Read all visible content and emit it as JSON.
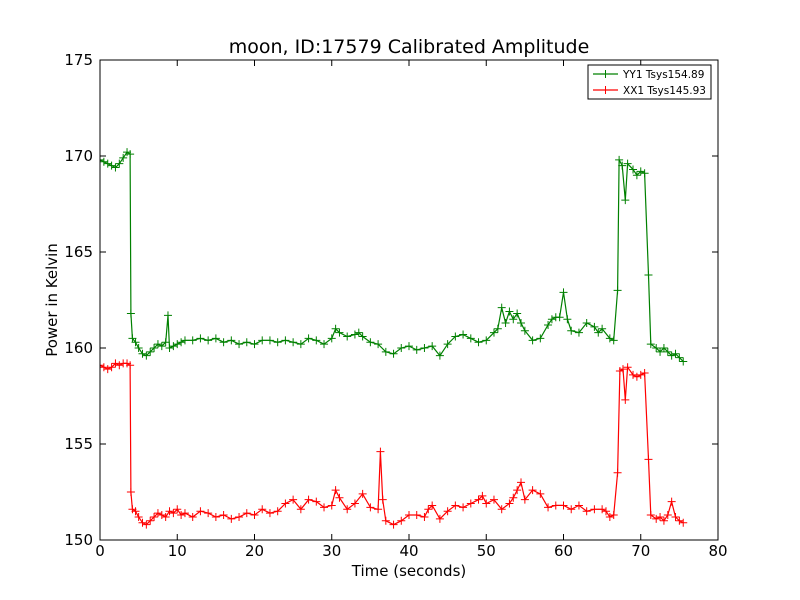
{
  "chart_data": {
    "type": "line",
    "title": "moon, ID:17579 Calibrated Amplitude",
    "xlabel": "Time (seconds)",
    "ylabel": "Power in Kelvin",
    "xlim": [
      0,
      80
    ],
    "ylim": [
      150,
      175
    ],
    "xticks": [
      0,
      10,
      20,
      30,
      40,
      50,
      60,
      70,
      80
    ],
    "yticks": [
      150,
      155,
      160,
      165,
      170,
      175
    ],
    "grid": false,
    "legend_position": "top-right",
    "marker": "+",
    "series": [
      {
        "name": "YY1 Tsys154.89",
        "color": "#008000",
        "points": [
          [
            0,
            169.8
          ],
          [
            0.5,
            169.7
          ],
          [
            1,
            169.6
          ],
          [
            1.5,
            169.5
          ],
          [
            2,
            169.4
          ],
          [
            2.5,
            169.6
          ],
          [
            3,
            169.9
          ],
          [
            3.5,
            170.2
          ],
          [
            3.9,
            170.1
          ],
          [
            4.0,
            161.8
          ],
          [
            4.2,
            160.5
          ],
          [
            4.6,
            160.3
          ],
          [
            5,
            160.0
          ],
          [
            5.5,
            159.7
          ],
          [
            6,
            159.6
          ],
          [
            6.5,
            159.8
          ],
          [
            7,
            160.0
          ],
          [
            7.5,
            160.2
          ],
          [
            8,
            160.1
          ],
          [
            8.5,
            160.3
          ],
          [
            8.8,
            161.7
          ],
          [
            9,
            160.0
          ],
          [
            9.5,
            160.1
          ],
          [
            10,
            160.2
          ],
          [
            10.5,
            160.3
          ],
          [
            11,
            160.4
          ],
          [
            12,
            160.4
          ],
          [
            13,
            160.5
          ],
          [
            14,
            160.4
          ],
          [
            15,
            160.5
          ],
          [
            16,
            160.3
          ],
          [
            17,
            160.4
          ],
          [
            18,
            160.2
          ],
          [
            19,
            160.3
          ],
          [
            20,
            160.2
          ],
          [
            21,
            160.4
          ],
          [
            22,
            160.4
          ],
          [
            23,
            160.3
          ],
          [
            24,
            160.4
          ],
          [
            25,
            160.3
          ],
          [
            26,
            160.2
          ],
          [
            27,
            160.5
          ],
          [
            28,
            160.4
          ],
          [
            29,
            160.2
          ],
          [
            30,
            160.5
          ],
          [
            30.5,
            161.0
          ],
          [
            31,
            160.8
          ],
          [
            32,
            160.6
          ],
          [
            33,
            160.7
          ],
          [
            33.5,
            160.8
          ],
          [
            34,
            160.6
          ],
          [
            35,
            160.3
          ],
          [
            36,
            160.2
          ],
          [
            37,
            159.8
          ],
          [
            38,
            159.7
          ],
          [
            39,
            160.0
          ],
          [
            40,
            160.1
          ],
          [
            41,
            159.9
          ],
          [
            42,
            160.0
          ],
          [
            43,
            160.1
          ],
          [
            44,
            159.6
          ],
          [
            45,
            160.2
          ],
          [
            46,
            160.6
          ],
          [
            47,
            160.7
          ],
          [
            48,
            160.5
          ],
          [
            49,
            160.3
          ],
          [
            50,
            160.4
          ],
          [
            51,
            160.8
          ],
          [
            51.5,
            161.0
          ],
          [
            52,
            162.1
          ],
          [
            52.5,
            161.3
          ],
          [
            53,
            161.9
          ],
          [
            53.5,
            161.5
          ],
          [
            54,
            161.8
          ],
          [
            54.5,
            161.3
          ],
          [
            55,
            160.9
          ],
          [
            56,
            160.4
          ],
          [
            57,
            160.5
          ],
          [
            58,
            161.2
          ],
          [
            58.5,
            161.5
          ],
          [
            59,
            161.6
          ],
          [
            59.5,
            161.6
          ],
          [
            60,
            162.9
          ],
          [
            60.5,
            161.5
          ],
          [
            61,
            160.9
          ],
          [
            62,
            160.8
          ],
          [
            63,
            161.3
          ],
          [
            64,
            161.1
          ],
          [
            64.5,
            160.8
          ],
          [
            65,
            161.0
          ],
          [
            66,
            160.5
          ],
          [
            66.5,
            160.4
          ],
          [
            67,
            163.0
          ],
          [
            67.2,
            169.8
          ],
          [
            67.6,
            169.5
          ],
          [
            68,
            167.7
          ],
          [
            68.3,
            169.6
          ],
          [
            69,
            169.3
          ],
          [
            69.5,
            169.0
          ],
          [
            70,
            169.2
          ],
          [
            70.5,
            169.1
          ],
          [
            71,
            163.8
          ],
          [
            71.3,
            160.2
          ],
          [
            72,
            160.0
          ],
          [
            72.5,
            159.8
          ],
          [
            73,
            160.0
          ],
          [
            73.5,
            159.8
          ],
          [
            74,
            159.6
          ],
          [
            74.5,
            159.7
          ],
          [
            75,
            159.5
          ],
          [
            75.5,
            159.3
          ]
        ]
      },
      {
        "name": "XX1 Tsys145.93",
        "color": "#ff0000",
        "points": [
          [
            0,
            159.1
          ],
          [
            0.5,
            159.0
          ],
          [
            1,
            158.9
          ],
          [
            1.5,
            159.0
          ],
          [
            2,
            159.2
          ],
          [
            2.5,
            159.1
          ],
          [
            3,
            159.2
          ],
          [
            3.5,
            159.2
          ],
          [
            3.9,
            159.1
          ],
          [
            4.0,
            152.5
          ],
          [
            4.2,
            151.6
          ],
          [
            4.6,
            151.5
          ],
          [
            5,
            151.2
          ],
          [
            5.5,
            150.9
          ],
          [
            6,
            150.8
          ],
          [
            6.5,
            151.0
          ],
          [
            7,
            151.2
          ],
          [
            7.5,
            151.4
          ],
          [
            8,
            151.3
          ],
          [
            8.5,
            151.2
          ],
          [
            9,
            151.5
          ],
          [
            9.5,
            151.4
          ],
          [
            10,
            151.6
          ],
          [
            10.5,
            151.3
          ],
          [
            11,
            151.4
          ],
          [
            12,
            151.2
          ],
          [
            13,
            151.5
          ],
          [
            14,
            151.4
          ],
          [
            15,
            151.2
          ],
          [
            16,
            151.3
          ],
          [
            17,
            151.1
          ],
          [
            18,
            151.2
          ],
          [
            19,
            151.4
          ],
          [
            20,
            151.3
          ],
          [
            21,
            151.6
          ],
          [
            22,
            151.4
          ],
          [
            23,
            151.5
          ],
          [
            24,
            151.9
          ],
          [
            25,
            152.1
          ],
          [
            26,
            151.6
          ],
          [
            27,
            152.1
          ],
          [
            28,
            152.0
          ],
          [
            29,
            151.7
          ],
          [
            30,
            151.8
          ],
          [
            30.5,
            152.6
          ],
          [
            31,
            152.2
          ],
          [
            32,
            151.6
          ],
          [
            33,
            151.9
          ],
          [
            34,
            152.4
          ],
          [
            35,
            151.7
          ],
          [
            36,
            151.6
          ],
          [
            36.3,
            154.6
          ],
          [
            36.6,
            152.1
          ],
          [
            37,
            151.0
          ],
          [
            38,
            150.8
          ],
          [
            39,
            151.0
          ],
          [
            40,
            151.3
          ],
          [
            41,
            151.3
          ],
          [
            42,
            151.2
          ],
          [
            42.5,
            151.6
          ],
          [
            43,
            151.8
          ],
          [
            44,
            151.1
          ],
          [
            45,
            151.5
          ],
          [
            46,
            151.8
          ],
          [
            47,
            151.7
          ],
          [
            48,
            151.9
          ],
          [
            49,
            152.1
          ],
          [
            49.5,
            152.3
          ],
          [
            50,
            151.9
          ],
          [
            51,
            152.1
          ],
          [
            52,
            151.6
          ],
          [
            53,
            151.9
          ],
          [
            53.5,
            152.2
          ],
          [
            54,
            152.6
          ],
          [
            54.5,
            153.0
          ],
          [
            55,
            152.1
          ],
          [
            56,
            152.6
          ],
          [
            57,
            152.4
          ],
          [
            58,
            151.7
          ],
          [
            59,
            151.8
          ],
          [
            60,
            151.8
          ],
          [
            61,
            151.6
          ],
          [
            62,
            151.8
          ],
          [
            63,
            151.5
          ],
          [
            64,
            151.6
          ],
          [
            65,
            151.6
          ],
          [
            65.5,
            151.5
          ],
          [
            66,
            151.2
          ],
          [
            66.5,
            151.3
          ],
          [
            67,
            153.5
          ],
          [
            67.3,
            158.8
          ],
          [
            67.7,
            158.9
          ],
          [
            68,
            157.3
          ],
          [
            68.3,
            159.0
          ],
          [
            69,
            158.6
          ],
          [
            69.5,
            158.5
          ],
          [
            70,
            158.6
          ],
          [
            70.5,
            158.7
          ],
          [
            71,
            154.2
          ],
          [
            71.3,
            151.3
          ],
          [
            72,
            151.1
          ],
          [
            72.5,
            151.2
          ],
          [
            73,
            151.0
          ],
          [
            73.5,
            151.3
          ],
          [
            74,
            152.0
          ],
          [
            74.5,
            151.2
          ],
          [
            75,
            151.0
          ],
          [
            75.5,
            150.9
          ]
        ]
      }
    ]
  }
}
